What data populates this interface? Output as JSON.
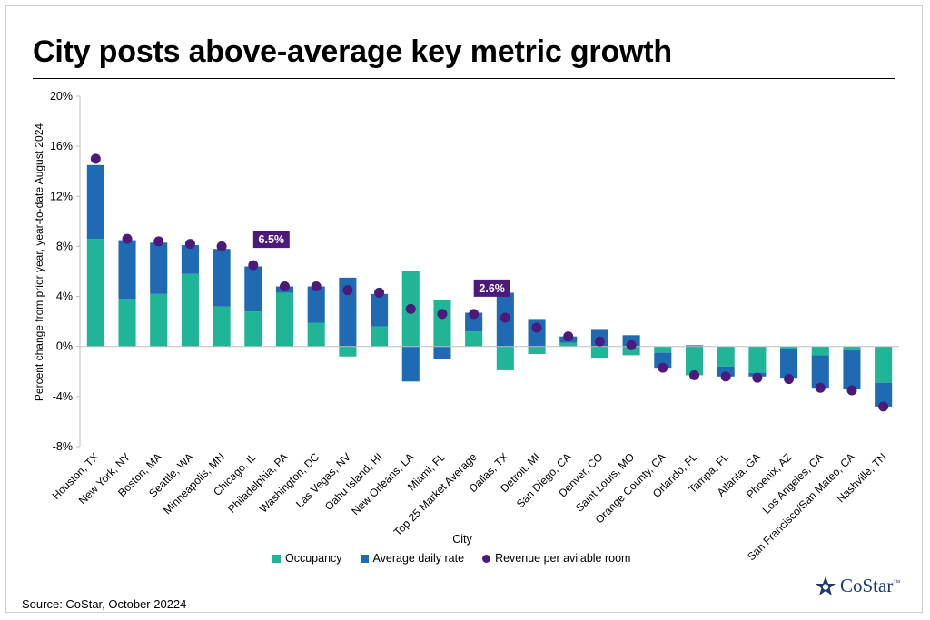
{
  "title": "City posts above-average key metric growth",
  "source": "Source: CoStar, October 20224",
  "logo_text": "CoStar",
  "logo_mark": "™",
  "colors": {
    "occupancy": "#1fb596",
    "adr": "#1f6bb3",
    "revpar": "#4b1a7a",
    "axis": "#bfbfbf",
    "grid": "#d9d9d9"
  },
  "legend": [
    {
      "label": "Occupancy",
      "key": "occupancy",
      "shape": "square"
    },
    {
      "label": "Average daily rate",
      "key": "adr",
      "shape": "square"
    },
    {
      "label": "Revenue per avilable room",
      "key": "revpar",
      "shape": "circle"
    }
  ],
  "chart_data": {
    "type": "bar",
    "stacked": true,
    "xlabel": "City",
    "ylabel": "Percent change from prior year, year-to-date August 2024",
    "ylim": [
      -8,
      20
    ],
    "yticks": [
      -8,
      -4,
      0,
      4,
      8,
      12,
      16,
      20
    ],
    "ytick_labels": [
      "-8%",
      "-4%",
      "0%",
      "4%",
      "8%",
      "12%",
      "16%",
      "20%"
    ],
    "categories": [
      "Houston, TX",
      "New York, NY",
      "Boston, MA",
      "Seattle, WA",
      "Minneapolis, MN",
      "Chicago, IL",
      "Philadelphia, PA",
      "Washington, DC",
      "Las Vegas, NV",
      "Oahu Island, HI",
      "New Orleans, LA",
      "Miami, FL",
      "Top 25 Market Average",
      "Dallas, TX",
      "Detroit, MI",
      "San Diego, CA",
      "Denver, CO",
      "Saint Louis, MO",
      "Orange County, CA",
      "Orlando, FL",
      "Tampa, FL",
      "Atlanta, GA",
      "Phoenix, AZ",
      "Los Angeles, CA",
      "San Francisco/San Mateo, CA",
      "Nashville, TN"
    ],
    "series": [
      {
        "name": "Occupancy",
        "key": "occupancy",
        "type": "bar",
        "values": [
          8.6,
          3.8,
          4.2,
          5.8,
          3.2,
          2.8,
          4.3,
          1.9,
          -0.8,
          1.6,
          6.0,
          3.7,
          1.2,
          -1.9,
          -0.6,
          0.3,
          -0.9,
          -0.7,
          -0.5,
          -2.3,
          -1.6,
          -2.1,
          -0.2,
          -0.7,
          -0.3,
          -2.9
        ]
      },
      {
        "name": "Average daily rate",
        "key": "adr",
        "type": "bar",
        "values": [
          5.9,
          4.7,
          4.1,
          2.3,
          4.6,
          3.6,
          0.5,
          2.9,
          5.5,
          2.6,
          -2.8,
          -1.0,
          1.5,
          4.3,
          2.2,
          0.5,
          1.4,
          0.9,
          -1.2,
          0.1,
          -0.8,
          -0.3,
          -2.3,
          -2.6,
          -3.1,
          -1.9
        ]
      },
      {
        "name": "Revenue per avilable room",
        "key": "revpar",
        "type": "scatter",
        "values": [
          15.0,
          8.6,
          8.4,
          8.2,
          8.0,
          6.5,
          4.8,
          4.8,
          4.5,
          4.3,
          3.0,
          2.6,
          2.6,
          2.3,
          1.5,
          0.8,
          0.4,
          0.1,
          -1.7,
          -2.3,
          -2.4,
          -2.5,
          -2.6,
          -3.3,
          -3.5,
          -4.8
        ]
      }
    ],
    "annotations": [
      {
        "category": "Chicago, IL",
        "text": "6.5%"
      },
      {
        "category": "Top 25 Market Average",
        "text": "2.6%"
      }
    ]
  }
}
